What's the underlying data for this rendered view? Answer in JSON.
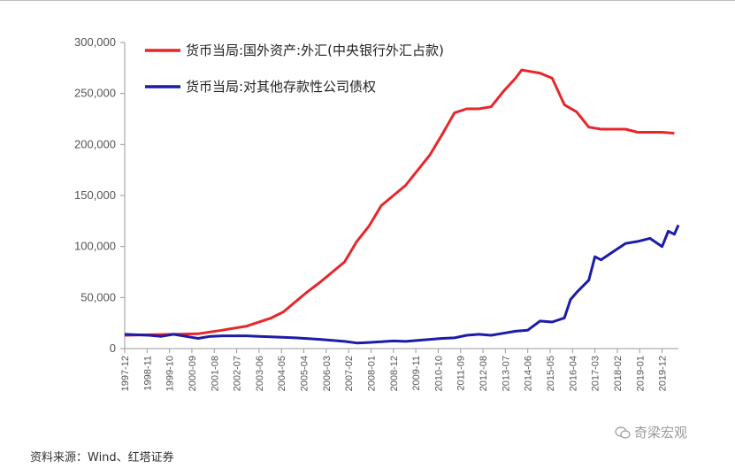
{
  "source_note": "资料来源：Wind、红塔证券",
  "watermark": "奇梁宏观",
  "chart_data": {
    "type": "line",
    "title": "",
    "xlabel": "",
    "ylabel": "",
    "ylim": [
      0,
      300000
    ],
    "yticks": [
      0,
      50000,
      100000,
      150000,
      200000,
      250000,
      300000
    ],
    "ytick_labels": [
      "0",
      "50,000",
      "100,000",
      "150,000",
      "200,000",
      "250,000",
      "300,000"
    ],
    "xtick_labels": [
      "1997-12",
      "1998-11",
      "1999-10",
      "2000-09",
      "2001-08",
      "2002-07",
      "2003-06",
      "2004-05",
      "2005-04",
      "2006-03",
      "2007-02",
      "2008-01",
      "2008-12",
      "2009-11",
      "2010-10",
      "2011-09",
      "2012-08",
      "2013-07",
      "2014-06",
      "2015-05",
      "2016-04",
      "2017-03",
      "2018-02",
      "2019-01",
      "2019-12"
    ],
    "xlim": [
      "1997-12",
      "2020-08"
    ],
    "legend_position": "top-left",
    "colors": {
      "red": "#e8262a",
      "blue": "#1c1ca8"
    },
    "series": [
      {
        "name": "货币当局:国外资产:外汇(中央银行外汇占款)",
        "color": "#e8262a",
        "x": [
          "1997-12",
          "1998-12",
          "1999-12",
          "2000-12",
          "2001-12",
          "2002-12",
          "2003-12",
          "2004-06",
          "2004-12",
          "2005-06",
          "2005-12",
          "2006-06",
          "2006-12",
          "2007-06",
          "2007-12",
          "2008-06",
          "2008-12",
          "2009-06",
          "2009-12",
          "2010-06",
          "2010-12",
          "2011-06",
          "2011-12",
          "2012-06",
          "2012-12",
          "2013-06",
          "2013-12",
          "2014-03",
          "2014-06",
          "2014-12",
          "2015-06",
          "2015-12",
          "2016-06",
          "2016-12",
          "2017-06",
          "2017-12",
          "2018-06",
          "2018-12",
          "2019-06",
          "2019-12",
          "2020-06"
        ],
        "y": [
          13000,
          13500,
          14000,
          14500,
          18000,
          22000,
          30000,
          36000,
          46000,
          56000,
          65000,
          75000,
          85000,
          105000,
          120000,
          140000,
          150000,
          160000,
          175000,
          190000,
          210000,
          231000,
          235000,
          235000,
          237000,
          252000,
          265000,
          273000,
          272000,
          270000,
          265000,
          239000,
          232000,
          217000,
          215000,
          215000,
          215000,
          212000,
          212000,
          212000,
          211000
        ]
      },
      {
        "name": "货币当局:对其他存款性公司债权",
        "color": "#1c1ca8",
        "x": [
          "1997-12",
          "1998-12",
          "1999-06",
          "1999-12",
          "2000-06",
          "2000-12",
          "2001-06",
          "2001-12",
          "2002-06",
          "2002-12",
          "2003-06",
          "2003-12",
          "2004-12",
          "2005-12",
          "2006-12",
          "2007-06",
          "2007-12",
          "2008-12",
          "2009-06",
          "2009-12",
          "2010-06",
          "2010-12",
          "2011-06",
          "2011-12",
          "2012-06",
          "2012-12",
          "2013-06",
          "2013-12",
          "2014-06",
          "2014-12",
          "2015-06",
          "2015-12",
          "2016-03",
          "2016-06",
          "2016-12",
          "2017-03",
          "2017-06",
          "2017-12",
          "2018-06",
          "2018-12",
          "2019-06",
          "2019-12",
          "2020-03",
          "2020-06",
          "2020-08"
        ],
        "y": [
          14000,
          13000,
          12000,
          14000,
          12000,
          10000,
          12000,
          12500,
          12500,
          12500,
          12000,
          11500,
          10500,
          9000,
          7000,
          5500,
          6000,
          7500,
          7000,
          8000,
          9000,
          10000,
          10500,
          13000,
          14000,
          13000,
          15000,
          17000,
          18000,
          27000,
          26000,
          30000,
          48000,
          55000,
          67000,
          90000,
          87000,
          95000,
          103000,
          105000,
          108000,
          100000,
          115000,
          112000,
          121000
        ]
      }
    ]
  }
}
